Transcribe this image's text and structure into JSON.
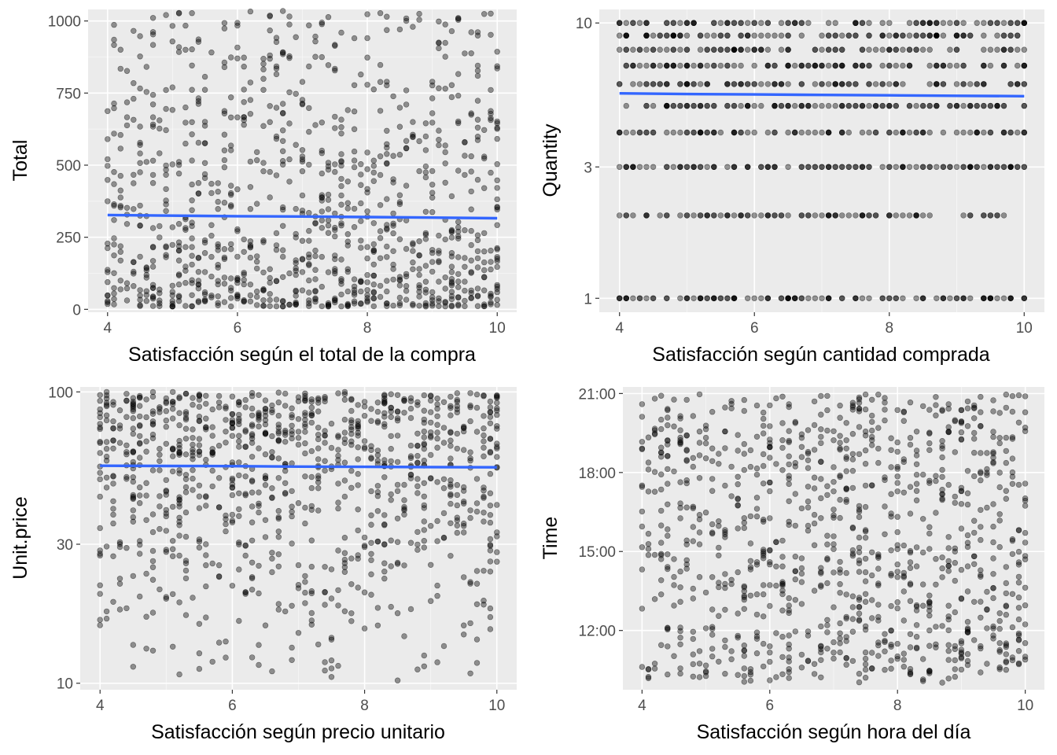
{
  "colors": {
    "panel_background": "#ebebeb",
    "grid_major": "#ffffff",
    "points": "#000000",
    "smooth_line": "#3366ff"
  },
  "chart_data": [
    {
      "type": "scatter",
      "xlabel": "Satisfacción según el total de la compra",
      "ylabel": "Total",
      "y_scale": "linear",
      "xlim": [
        3.7,
        10.3
      ],
      "ylim": [
        -10,
        1040
      ],
      "x_ticks": [
        4,
        6,
        8,
        10
      ],
      "x_tick_labels": [
        "4",
        "6",
        "8",
        "10"
      ],
      "y_ticks": [
        0,
        250,
        500,
        750,
        1000
      ],
      "y_tick_labels": [
        "0",
        "250",
        "500",
        "750",
        "1000"
      ],
      "grid": true,
      "point_opacity": 0.4,
      "smooth_line": {
        "x": [
          4,
          5,
          6,
          7,
          8,
          9,
          10
        ],
        "y": [
          327,
          325,
          323,
          322,
          320,
          318,
          316
        ]
      },
      "points": {
        "n": 1000,
        "x_range": [
          4,
          10
        ],
        "x_step": 0.1,
        "y_range": [
          10,
          1040
        ],
        "y_distribution": "right-skewed, most purchases below 400, sparse up to about 1040"
      }
    },
    {
      "type": "scatter",
      "xlabel": "Satisfacción según cantidad comprada",
      "ylabel": "Quantity",
      "y_scale": "log10",
      "xlim": [
        3.7,
        10.3
      ],
      "ylim": [
        0.89,
        11.2
      ],
      "x_ticks": [
        4,
        6,
        8,
        10
      ],
      "x_tick_labels": [
        "4",
        "6",
        "8",
        "10"
      ],
      "y_ticks": [
        1,
        3,
        10
      ],
      "y_tick_labels": [
        "1",
        "3",
        "10"
      ],
      "grid": true,
      "point_opacity": 0.4,
      "smooth_line": {
        "x": [
          4,
          5,
          6,
          7,
          8,
          9,
          10
        ],
        "y": [
          5.55,
          5.52,
          5.5,
          5.48,
          5.46,
          5.44,
          5.42
        ]
      },
      "points": {
        "n": 1000,
        "x_range": [
          4,
          10
        ],
        "x_step": 0.1,
        "y_values": [
          1,
          2,
          3,
          4,
          5,
          6,
          7,
          8,
          9,
          10
        ],
        "y_distribution": "integer quantities 1 to 10, roughly uniform"
      }
    },
    {
      "type": "scatter",
      "xlabel": "Satisfacción según precio unitario",
      "ylabel": "Unit.price",
      "y_scale": "log10",
      "xlim": [
        3.7,
        10.3
      ],
      "ylim": [
        9.5,
        104
      ],
      "x_ticks": [
        4,
        6,
        8,
        10
      ],
      "x_tick_labels": [
        "4",
        "6",
        "8",
        "10"
      ],
      "y_ticks": [
        10,
        30,
        100
      ],
      "y_tick_labels": [
        "10",
        "30",
        "100"
      ],
      "grid": true,
      "point_opacity": 0.4,
      "smooth_line": {
        "x": [
          4,
          5,
          6,
          7,
          8,
          9,
          10
        ],
        "y": [
          55.8,
          55.7,
          55.6,
          55.4,
          55.3,
          55.2,
          55.1
        ]
      },
      "points": {
        "n": 1000,
        "x_range": [
          4,
          10
        ],
        "x_step": 0.1,
        "y_range": [
          10,
          100
        ],
        "y_distribution": "uniform on a linear scale, dense near 100 on the log axis"
      }
    },
    {
      "type": "scatter",
      "xlabel": "Satisfacción según hora del día",
      "ylabel": "Time",
      "y_scale": "time",
      "xlim": [
        3.7,
        10.3
      ],
      "ylim": [
        "09:45",
        "21:15"
      ],
      "x_ticks": [
        4,
        6,
        8,
        10
      ],
      "x_tick_labels": [
        "4",
        "6",
        "8",
        "10"
      ],
      "y_ticks": [
        "12:00",
        "15:00",
        "18:00",
        "21:00"
      ],
      "y_tick_labels": [
        "12:00",
        "15:00",
        "18:00",
        "21:00"
      ],
      "grid": true,
      "point_opacity": 0.4,
      "points": {
        "n": 1000,
        "x_range": [
          4,
          10
        ],
        "x_step": 0.1,
        "y_range": [
          "10:00",
          "21:00"
        ],
        "y_distribution": "uniform across opening hours"
      }
    }
  ]
}
